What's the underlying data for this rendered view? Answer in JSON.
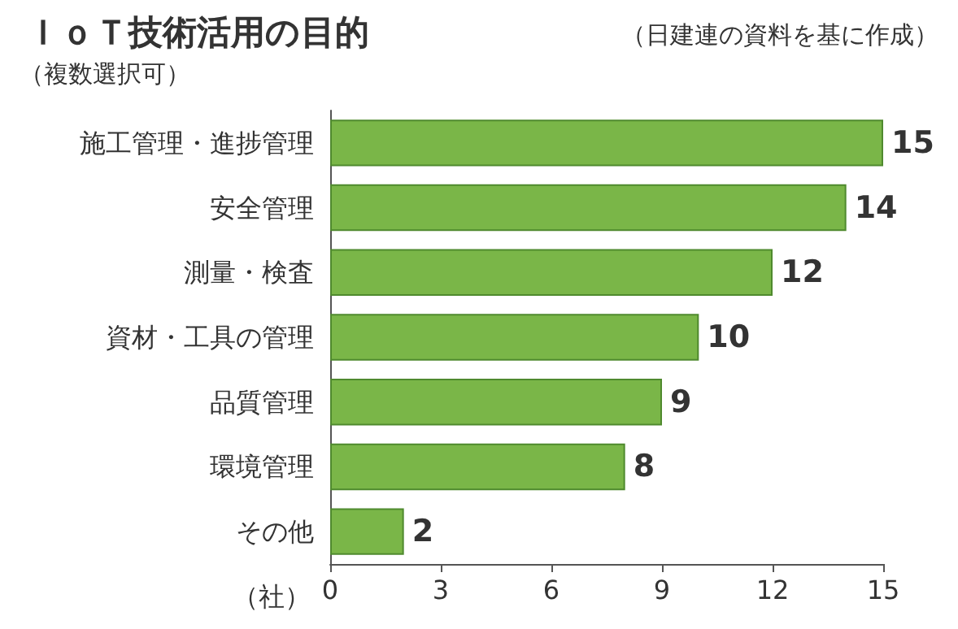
{
  "chart_data": {
    "type": "bar",
    "orientation": "horizontal",
    "title": "ＩｏＴ技術活用の目的",
    "subtitle": "（複数選択可）",
    "annotations": [
      "（日建連の資料を基に作成）"
    ],
    "xlabel": "（社）",
    "categories": [
      "施工管理・進捗管理",
      "安全管理",
      "測量・検査",
      "資材・工具の管理",
      "品質管理",
      "環境管理",
      "その他"
    ],
    "values": [
      15,
      14,
      12,
      10,
      9,
      8,
      2
    ],
    "color": "#7ab648",
    "xlim": [
      0,
      15
    ],
    "xticks": [
      0,
      3,
      6,
      9,
      12,
      15
    ],
    "grid": false,
    "data_labels": true
  }
}
